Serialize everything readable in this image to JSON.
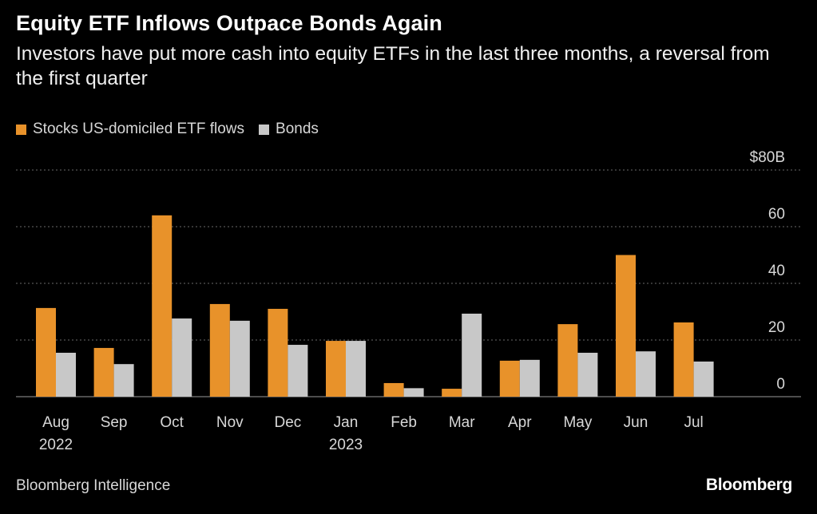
{
  "chart_data": {
    "type": "bar",
    "title": "Equity ETF Inflows Outpace Bonds Again",
    "subtitle": "Investors have put more cash into equity ETFs in the last three months, a reversal from the first quarter",
    "categories": [
      "Aug",
      "Sep",
      "Oct",
      "Nov",
      "Dec",
      "Jan",
      "Feb",
      "Mar",
      "Apr",
      "May",
      "Jun",
      "Jul"
    ],
    "category_sublabels": [
      "2022",
      "",
      "",
      "",
      "",
      "2023",
      "",
      "",
      "",
      "",
      "",
      ""
    ],
    "series": [
      {
        "name": "Stocks US-domiciled ETF flows",
        "color": "#e8922a",
        "values": [
          31.3,
          17.2,
          64,
          32.7,
          31,
          19.7,
          4.8,
          2.8,
          12.7,
          25.6,
          50,
          26.2
        ]
      },
      {
        "name": "Bonds",
        "color": "#c8c8c8",
        "values": [
          15.5,
          11.5,
          27.6,
          26.8,
          18.3,
          19.7,
          3,
          29.3,
          13,
          15.5,
          16,
          12.4
        ]
      }
    ],
    "xlabel": "",
    "ylabel": "",
    "ylim": [
      0,
      80
    ],
    "yticks": [
      0,
      20,
      40,
      60,
      80
    ],
    "ytick_labels": [
      "0",
      "20",
      "40",
      "60",
      "$80B"
    ],
    "y_axis_side": "right",
    "grid": true,
    "legend_position": "top-left"
  },
  "legend": {
    "stocks_label": "Stocks US-domiciled ETF flows",
    "bonds_label": "Bonds"
  },
  "footer": {
    "source": "Bloomberg Intelligence",
    "brand": "Bloomberg"
  }
}
